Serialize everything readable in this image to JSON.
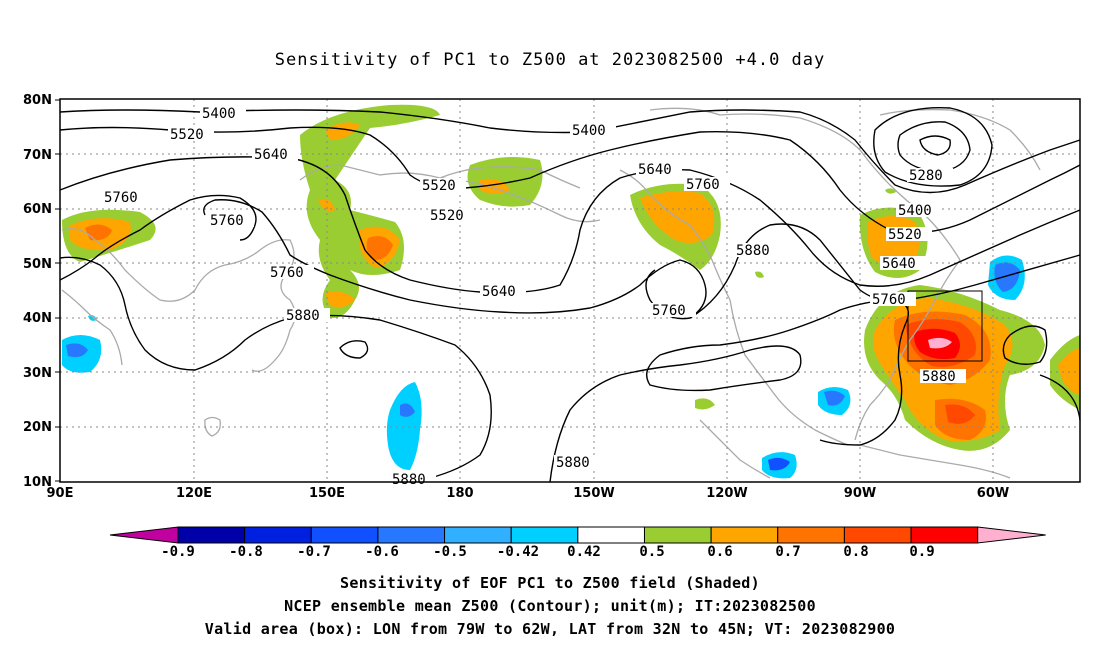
{
  "title": "Sensitivity of PC1 to Z500 at 2023082500 +4.0 day",
  "map": {
    "lat_labels": [
      "80N",
      "70N",
      "60N",
      "50N",
      "40N",
      "30N",
      "20N",
      "10N"
    ],
    "lon_labels": [
      "90E",
      "120E",
      "150E",
      "180",
      "150W",
      "120W",
      "90W",
      "60W"
    ],
    "contour_labels": [
      "5400",
      "5520",
      "5640",
      "5760",
      "5880",
      "5280"
    ],
    "valid_box": {
      "lon": [
        "79W",
        "62W"
      ],
      "lat": [
        "32N",
        "45N"
      ]
    }
  },
  "colorbar": {
    "labels": [
      "-0.9",
      "-0.8",
      "-0.7",
      "-0.6",
      "-0.5",
      "-0.42",
      "0.42",
      "0.5",
      "0.6",
      "0.7",
      "0.8",
      "0.9"
    ],
    "colors": [
      "#c0009f",
      "#0000a8",
      "#0020e0",
      "#1050ff",
      "#2878ff",
      "#30b0ff",
      "#00d0ff",
      "#ffffff",
      "#9acd32",
      "#ffa500",
      "#ff7400",
      "#ff4800",
      "#ff0000",
      "#ffb0d0"
    ]
  },
  "captions": [
    "Sensitivity of EOF PC1 to Z500 field (Shaded)",
    "NCEP ensemble mean Z500 (Contour); unit(m); IT:2023082500",
    "Valid area (box): LON from 79W to 62W, LAT from 32N to 45N; VT: 2023082900"
  ]
}
